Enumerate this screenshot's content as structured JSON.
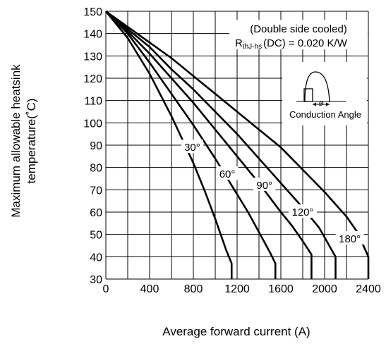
{
  "chart_data": {
    "type": "line",
    "title": "",
    "xlabel": "Average forward current (A)",
    "ylabel_lines": [
      "Maximum allowable heatsink",
      "temperature(˚C)"
    ],
    "xlim": [
      0,
      2400
    ],
    "ylim": [
      30,
      150
    ],
    "xticks": [
      0,
      400,
      800,
      1200,
      1600,
      2000,
      2400
    ],
    "yticks": [
      30,
      40,
      50,
      60,
      70,
      80,
      90,
      100,
      110,
      120,
      130,
      140,
      150
    ],
    "grid_x_step": 200,
    "grid_y_step": 10,
    "grid": true,
    "annotation": {
      "line1": "(Double side cooled)",
      "line2_main": "R",
      "line2_sub": "thJ-hs",
      "line2_rest": "(DC) = 0.020 K/W",
      "inset_label": "Conduction Angle",
      "inset_symbol": "ø"
    },
    "series": [
      {
        "name": "30°",
        "x": [
          0,
          200,
          400,
          600,
          800,
          900,
          1000,
          1100,
          1150,
          1150
        ],
        "y": [
          150,
          138,
          122,
          103,
          82,
          70,
          57,
          43,
          37,
          30
        ]
      },
      {
        "name": "60°",
        "x": [
          0,
          200,
          400,
          600,
          800,
          1000,
          1200,
          1300,
          1400,
          1500,
          1550,
          1550
        ],
        "y": [
          150,
          140,
          127,
          113,
          99,
          84,
          68,
          60,
          51,
          42,
          37,
          30
        ]
      },
      {
        "name": "90°",
        "x": [
          0,
          200,
          400,
          600,
          800,
          1000,
          1200,
          1400,
          1600,
          1700,
          1800,
          1880,
          1880
        ],
        "y": [
          150,
          141,
          131,
          120,
          109,
          97,
          85,
          73,
          60,
          54,
          47,
          41,
          30
        ]
      },
      {
        "name": "120°",
        "x": [
          0,
          200,
          400,
          600,
          800,
          1000,
          1200,
          1400,
          1600,
          1800,
          1950,
          2100,
          2100
        ],
        "y": [
          150,
          142,
          134,
          124,
          115,
          105,
          95,
          84,
          73,
          62,
          53,
          40,
          30
        ]
      },
      {
        "name": "180°",
        "x": [
          0,
          200,
          400,
          600,
          800,
          1000,
          1200,
          1400,
          1600,
          1800,
          2000,
          2200,
          2300,
          2400,
          2400
        ],
        "y": [
          150,
          143,
          136,
          129,
          121,
          113,
          105,
          97,
          89,
          79,
          69,
          58,
          51,
          40,
          30
        ]
      }
    ],
    "label_positions": [
      {
        "text": "30°",
        "x": 790,
        "y": 89
      },
      {
        "text": "60°",
        "x": 1110,
        "y": 77
      },
      {
        "text": "90°",
        "x": 1450,
        "y": 72
      },
      {
        "text": "120°",
        "x": 1800,
        "y": 60
      },
      {
        "text": "180°",
        "x": 2230,
        "y": 48
      }
    ]
  }
}
